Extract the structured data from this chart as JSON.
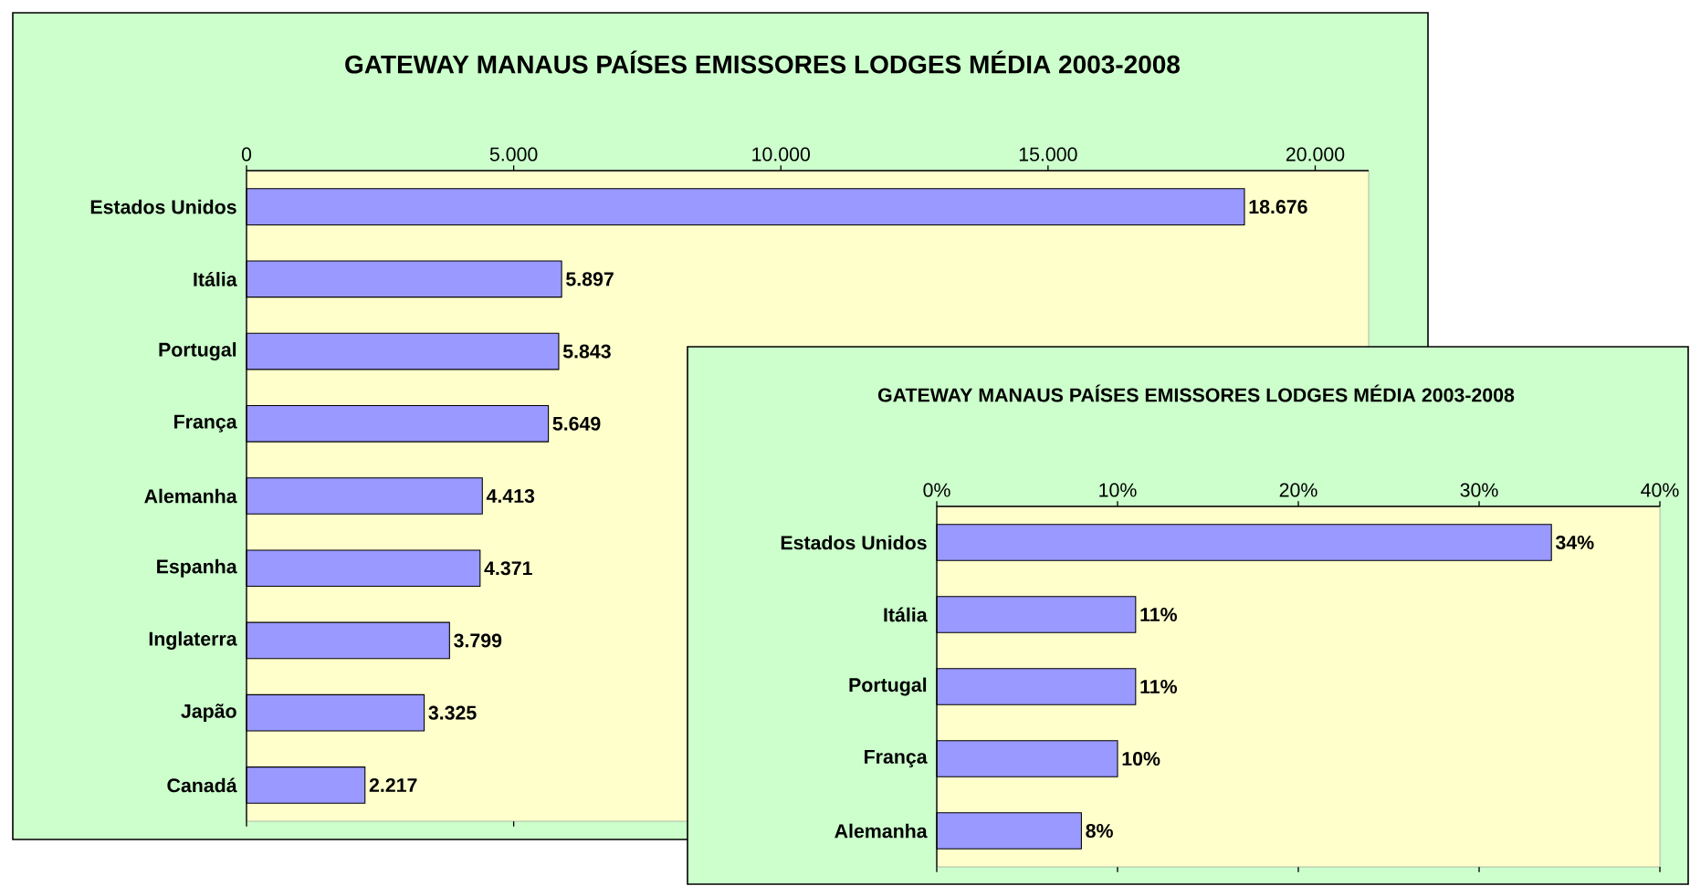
{
  "chart_data": [
    {
      "type": "bar",
      "orientation": "horizontal",
      "title": "GATEWAY MANAUS PAÍSES EMISSORES LODGES MÉDIA 2003-2008",
      "categories": [
        "Estados Unidos",
        "Itália",
        "Portugal",
        "França",
        "Alemanha",
        "Espanha",
        "Inglaterra",
        "Japão",
        "Canadá"
      ],
      "values": [
        18676,
        5897,
        5843,
        5649,
        4413,
        4371,
        3799,
        3325,
        2217
      ],
      "value_labels": [
        "18.676",
        "5.897",
        "5.843",
        "5.649",
        "4.413",
        "4.371",
        "3.799",
        "3.325",
        "2.217"
      ],
      "color": "#9999ff",
      "xlim": [
        0,
        21000
      ],
      "xticks": [
        0,
        {
          "value": 5000,
          "label": "5.000"
        },
        {
          "value": 10000,
          "label": "10.000"
        },
        {
          "value": 15000,
          "label": "15.000"
        },
        {
          "value": 20000,
          "label": "20.000"
        }
      ]
    },
    {
      "type": "bar",
      "orientation": "horizontal",
      "title": "GATEWAY MANAUS PAÍSES EMISSORES LODGES MÉDIA 2003-2008",
      "categories": [
        "Estados Unidos",
        "Itália",
        "Portugal",
        "França",
        "Alemanha"
      ],
      "values": [
        34,
        11,
        11,
        10,
        8
      ],
      "value_labels": [
        "34%",
        "11%",
        "11%",
        "10%",
        "8%"
      ],
      "color": "#9999ff",
      "xlim": [
        0,
        40
      ],
      "xticks": [
        {
          "value": 0,
          "label": "0%"
        },
        {
          "value": 10,
          "label": "10%"
        },
        {
          "value": 20,
          "label": "20%"
        },
        {
          "value": 30,
          "label": "30%"
        },
        {
          "value": 40,
          "label": "40%"
        }
      ]
    }
  ]
}
